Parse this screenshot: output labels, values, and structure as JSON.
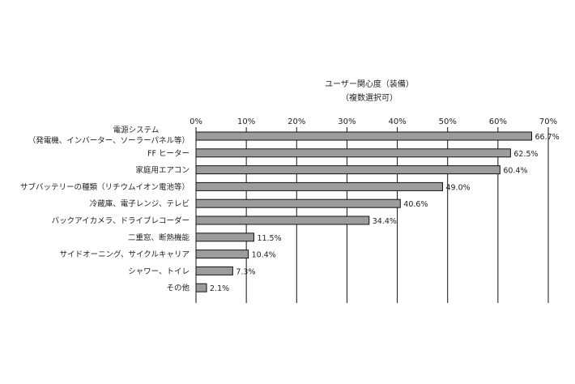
{
  "chart_data": {
    "type": "bar",
    "orientation": "horizontal",
    "title": "ユーザー関心度（装備）",
    "subtitle": "（複数選択可）",
    "xlim": [
      0,
      70
    ],
    "x_ticks": [
      "0%",
      "10%",
      "20%",
      "30%",
      "40%",
      "50%",
      "60%",
      "70%"
    ],
    "grid": true,
    "bar_color": "#9c9c9c",
    "categories": [
      [
        "電源システム",
        "（発電機、インバーター、ソーラーパネル等）"
      ],
      [
        "FF ヒーター"
      ],
      [
        "家庭用エアコン"
      ],
      [
        "サブバッテリーの種類（リチウムイオン電池等）"
      ],
      [
        "冷蔵庫、電子レンジ、テレビ"
      ],
      [
        "バックアイカメラ、ドライブレコーダー"
      ],
      [
        "二重窓、断熱機能"
      ],
      [
        "サイドオーニング、サイクルキャリア"
      ],
      [
        "シャワー、トイレ"
      ],
      [
        "その他"
      ]
    ],
    "values": [
      66.7,
      62.5,
      60.4,
      49.0,
      40.6,
      34.4,
      11.5,
      10.4,
      7.3,
      2.1
    ],
    "value_labels": [
      "66.7%",
      "62.5%",
      "60.4%",
      "49.0%",
      "40.6%",
      "34.4%",
      "11.5%",
      "10.4%",
      "7.3%",
      "2.1%"
    ]
  }
}
